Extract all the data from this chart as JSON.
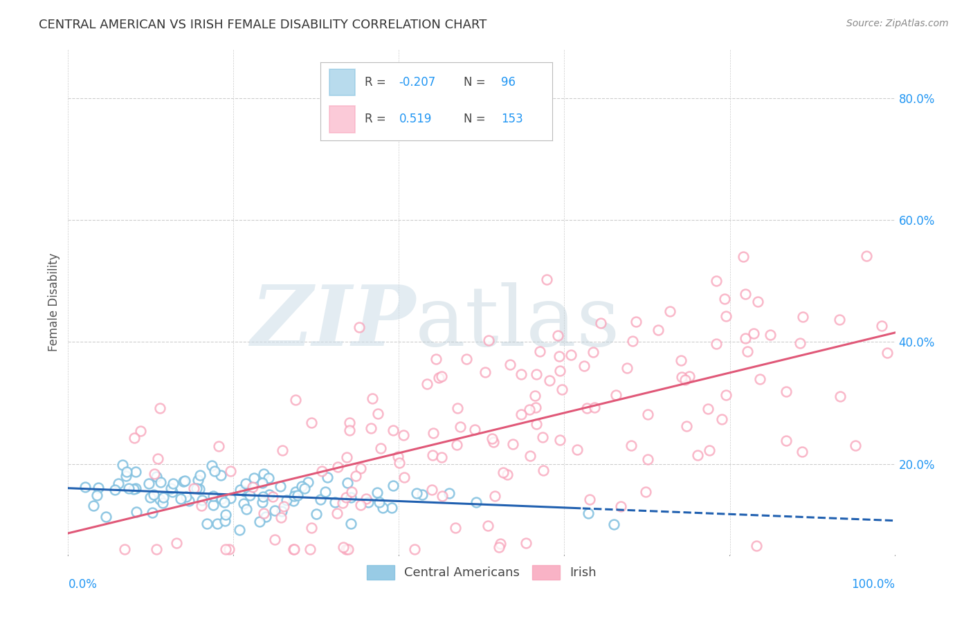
{
  "title": "CENTRAL AMERICAN VS IRISH FEMALE DISABILITY CORRELATION CHART",
  "source": "Source: ZipAtlas.com",
  "ylabel": "Female Disability",
  "xlim": [
    0.0,
    1.0
  ],
  "ylim": [
    0.05,
    0.88
  ],
  "ytick_values": [
    0.2,
    0.4,
    0.6,
    0.8
  ],
  "ytick_labels": [
    "20.0%",
    "40.0%",
    "60.0%",
    "80.0%"
  ],
  "xtick_values": [
    0.0,
    0.2,
    0.4,
    0.6,
    0.8,
    1.0
  ],
  "legend_r_blue": "-0.207",
  "legend_n_blue": "96",
  "legend_r_pink": "0.519",
  "legend_n_pink": "153",
  "blue_color": "#7fbfdf",
  "pink_color": "#f8a0b8",
  "blue_edge_color": "#5ba0c8",
  "pink_edge_color": "#f070a0",
  "blue_line_color": "#2060b0",
  "pink_line_color": "#e05878",
  "background_color": "#ffffff",
  "grid_color": "#cccccc",
  "blue_n": 96,
  "pink_n": 153,
  "blue_R": -0.207,
  "pink_R": 0.519,
  "blue_line_intercept": 0.155,
  "blue_line_slope": -0.025,
  "blue_dash_cutoff": 0.62,
  "pink_line_intercept": 0.1,
  "pink_line_slope": 0.3
}
